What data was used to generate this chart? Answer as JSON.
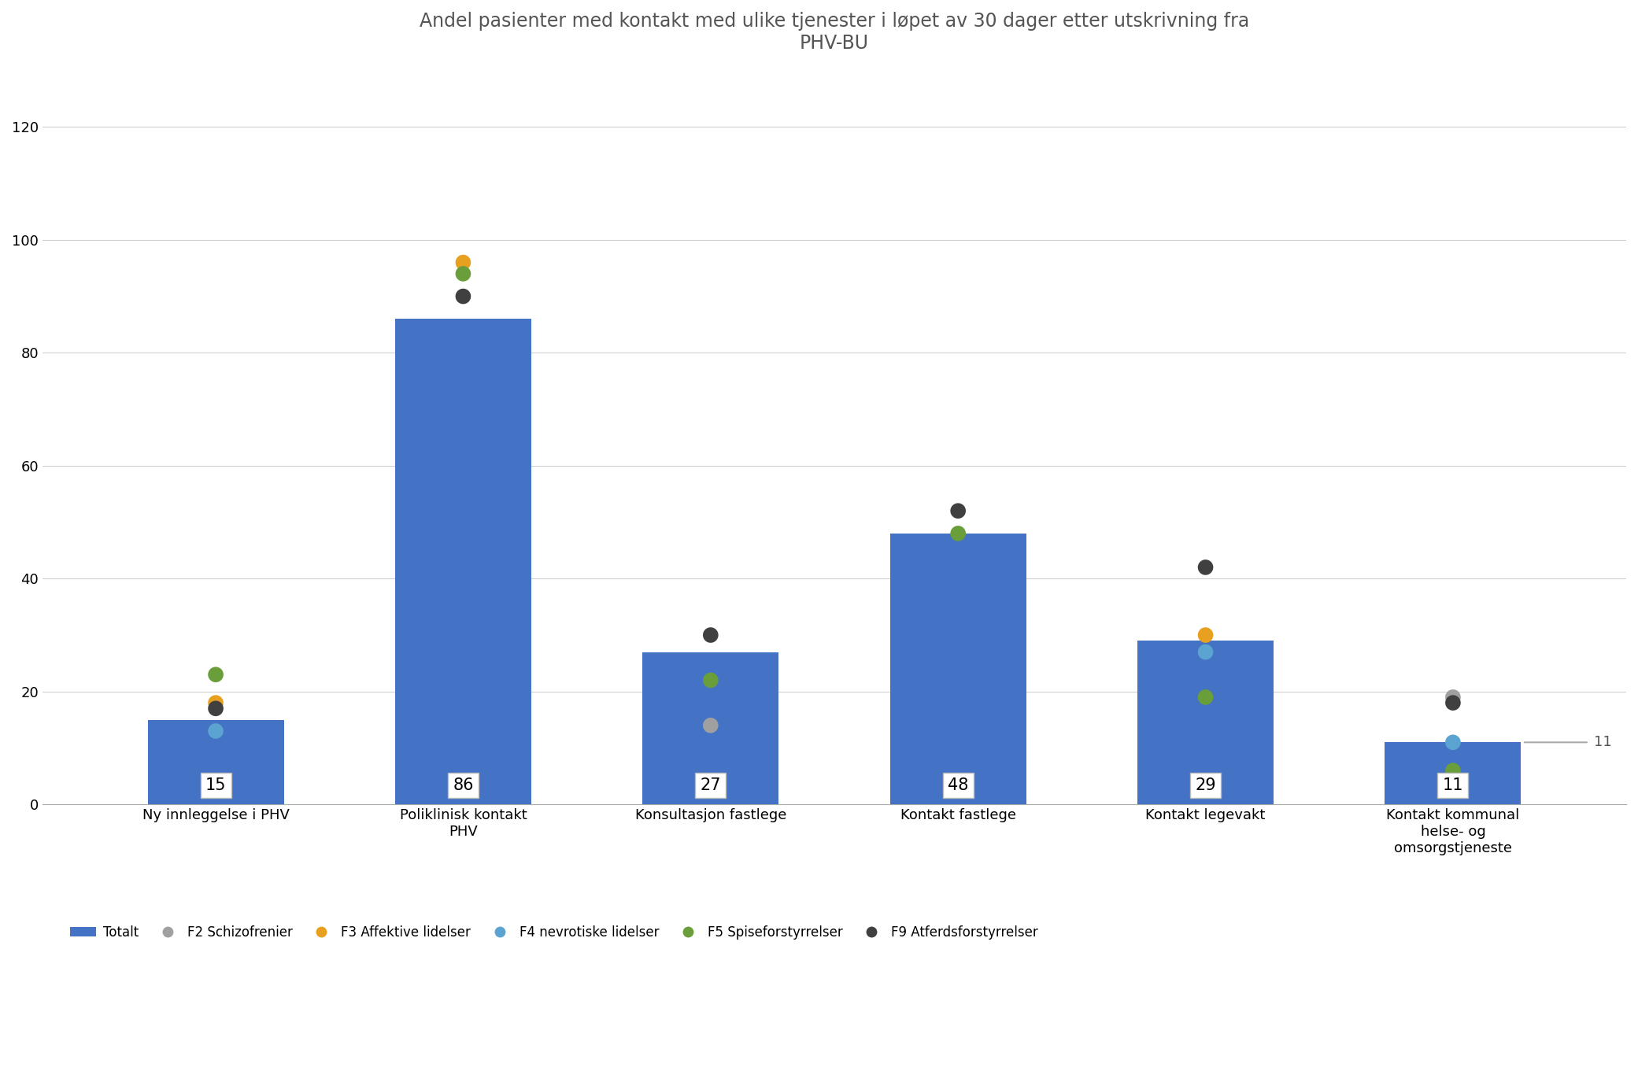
{
  "title": "Andel pasienter med kontakt med ulike tjenester i løpet av 30 dager etter utskrivning fra\nPHV-BU",
  "categories": [
    "Ny innleggelse i PHV",
    "Poliklinisk kontakt\nPHV",
    "Konsultasjon fastlege",
    "Kontakt fastlege",
    "Kontakt legevakt",
    "Kontakt kommunal\nhelse- og\nomsorgstjeneste"
  ],
  "bar_values": [
    15,
    86,
    27,
    48,
    29,
    11
  ],
  "bar_color": "#4472C4",
  "ylim": [
    0,
    130
  ],
  "yticks": [
    0,
    20,
    40,
    60,
    80,
    100,
    120
  ],
  "dot_series": {
    "F2 Schizofrenier": {
      "color": "#A0A0A0",
      "values": [
        null,
        null,
        14,
        null,
        null,
        19
      ]
    },
    "F3 Affektive lidelser": {
      "color": "#E8A020",
      "values": [
        18,
        96,
        null,
        null,
        30,
        null
      ]
    },
    "F4 nevrotiske lidelser": {
      "color": "#5BA3D0",
      "values": [
        13,
        null,
        null,
        null,
        27,
        11
      ]
    },
    "F5 Spiseforstyrrelser": {
      "color": "#6A9E3A",
      "values": [
        23,
        94,
        22,
        48,
        19,
        6
      ]
    },
    "F9 Atferdsforstyrrelser": {
      "color": "#404040",
      "values": [
        17,
        90,
        30,
        52,
        42,
        18
      ]
    }
  },
  "dot_series_ordered": [
    "F2 Schizofrenier",
    "F3 Affektive lidelser",
    "F4 nevrotiske lidelser",
    "F5 Spiseforstyrrelser",
    "F9 Atferdsforstyrrelser"
  ],
  "background_color": "#FFFFFF",
  "title_fontsize": 17,
  "tick_fontsize": 13,
  "dot_size": 200,
  "bar_width": 0.55,
  "label_box_color": "#FFFFFF",
  "label_text_color": "#000000"
}
